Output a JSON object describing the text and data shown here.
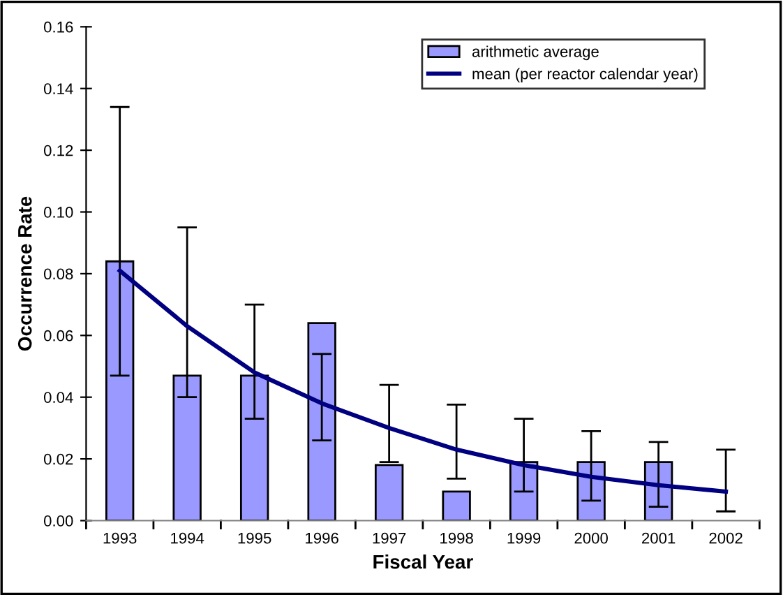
{
  "chart_data": {
    "type": "bar",
    "xlabel": "Fiscal Year",
    "ylabel": "Occurrence Rate",
    "categories": [
      "1993",
      "1994",
      "1995",
      "1996",
      "1997",
      "1998",
      "1999",
      "2000",
      "2001",
      "2002"
    ],
    "series": [
      {
        "name": "arithmetic average",
        "color": "#9999ff",
        "values": [
          0.084,
          0.047,
          0.047,
          0.064,
          0.018,
          0.0094,
          0.019,
          0.019,
          0.019,
          null
        ]
      },
      {
        "name": "mean (per reactor calendar year)",
        "type": "line",
        "color": "#000080",
        "values": [
          0.081,
          0.063,
          0.048,
          0.038,
          0.03,
          0.023,
          0.018,
          0.0142,
          0.0115,
          0.0094
        ],
        "errors": [
          [
            0.047,
            0.134
          ],
          [
            0.04,
            0.095
          ],
          [
            0.033,
            0.07
          ],
          [
            0.026,
            0.054
          ],
          [
            0.019,
            0.044
          ],
          [
            0.0136,
            0.0376
          ],
          [
            0.0094,
            0.033
          ],
          [
            0.0065,
            0.029
          ],
          [
            0.0045,
            0.0255
          ],
          [
            0.003,
            0.023
          ]
        ]
      }
    ],
    "ylim": [
      0,
      0.16
    ],
    "yticks": [
      {
        "value": 0,
        "label": "0.00"
      },
      {
        "value": 0.02,
        "label": "0.02"
      },
      {
        "value": 0.04,
        "label": "0.04"
      },
      {
        "value": 0.06,
        "label": "0.06"
      },
      {
        "value": 0.08,
        "label": "0.08"
      },
      {
        "value": 0.1,
        "label": "0.10"
      },
      {
        "value": 0.12,
        "label": "0.12"
      },
      {
        "value": 0.14,
        "label": "0.14"
      },
      {
        "value": 0.16,
        "label": "0.16"
      }
    ],
    "grid": false,
    "legend": "top right",
    "marker": "none",
    "line_style": "solid"
  }
}
